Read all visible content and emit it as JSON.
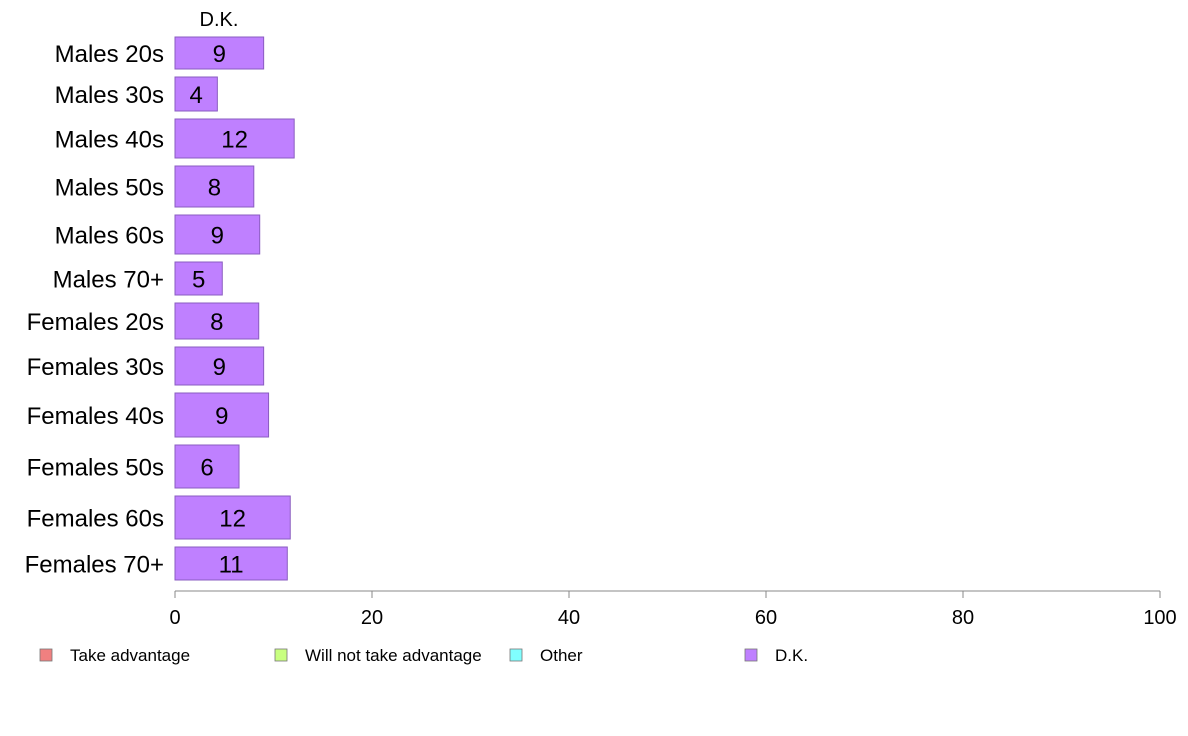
{
  "chart_data": {
    "type": "bar",
    "orientation": "horizontal",
    "column_header": "D.K.",
    "categories": [
      "Males 20s",
      "Males 30s",
      "Males 40s",
      "Males 50s",
      "Males 60s",
      "Males 70+",
      "Females 20s",
      "Females 30s",
      "Females 40s",
      "Females 50s",
      "Females 60s",
      "Females 70+"
    ],
    "series": [
      {
        "name": "D.K.",
        "values": [
          9,
          4,
          12,
          8,
          9,
          5,
          8,
          9,
          9,
          6,
          12,
          11
        ],
        "bar_extent": [
          9,
          4.3,
          12.1,
          8,
          8.6,
          4.8,
          8.5,
          9,
          9.5,
          6.5,
          11.7,
          11.4
        ]
      }
    ],
    "xlim": [
      0,
      100
    ],
    "xticks": [
      0,
      20,
      40,
      60,
      80,
      100
    ],
    "xlabel": "",
    "ylabel": "",
    "grid": false,
    "legend": {
      "placement": "bottom",
      "entries": [
        {
          "label": "Take advantage",
          "color": "#f08080"
        },
        {
          "label": "Will not take advantage",
          "color": "#c8ff80"
        },
        {
          "label": "Other",
          "color": "#80ffff"
        },
        {
          "label": "D.K.",
          "color": "#bf80ff"
        }
      ]
    },
    "colors": {
      "bar_fill": "#bf80ff",
      "bar_stroke": "#8a5cc0",
      "axis": "#888888"
    }
  }
}
